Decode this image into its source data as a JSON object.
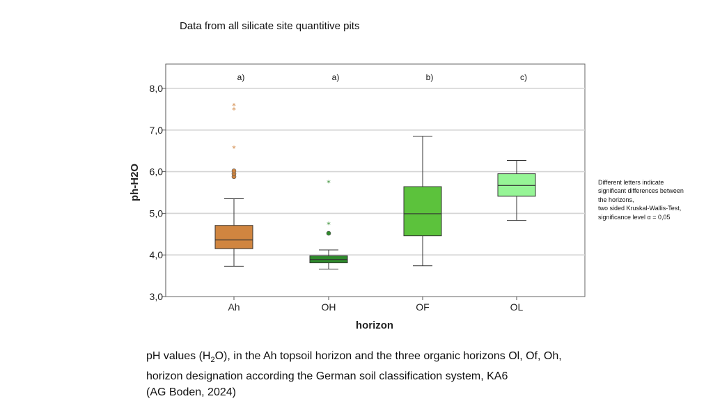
{
  "page": {
    "title": "Data from all silicate site quantitive pits",
    "note_lines": [
      "Different letters indicate",
      "significant differences between",
      "the horizons,",
      "two sided Kruskal-Wallis-Test,",
      "significance level α = 0,05"
    ],
    "caption": {
      "line1_pre": "pH values (H",
      "line1_sub": "2",
      "line1_post": "O), in the Ah topsoil horizon and the three organic horizons Ol, Of, Oh,",
      "line2": "horizon designation according the German soil classification system, KA6",
      "line3": "(AG Boden, 2024)"
    }
  },
  "chart_data": {
    "type": "box",
    "xlabel": "horizon",
    "ylabel": "ph-H2O",
    "ylim": [
      3.0,
      8.5
    ],
    "yticks": [
      3.0,
      4.0,
      5.0,
      6.0,
      7.0,
      8.0
    ],
    "ytick_labels": [
      "3,0",
      "4,0",
      "5,0",
      "6,0",
      "7,0",
      "8,0"
    ],
    "grid": true,
    "categories": [
      "Ah",
      "OH",
      "OF",
      "OL"
    ],
    "letters": [
      "a)",
      "a)",
      "b)",
      "c)"
    ],
    "colors": [
      "#d08540",
      "#2f8a2c",
      "#5cc23c",
      "#96f596"
    ],
    "outlier_colors": [
      "#d08540",
      "#2f8a2c",
      "#5cc23c",
      "#96f596"
    ],
    "boxes": [
      {
        "whisker_low": 3.73,
        "q1": 4.15,
        "median": 4.36,
        "q3": 4.71,
        "whisker_high": 5.35,
        "outliers": [
          5.88,
          5.95,
          6.02
        ],
        "extremes": [
          6.58,
          7.5,
          7.6
        ]
      },
      {
        "whisker_low": 3.66,
        "q1": 3.81,
        "median": 3.89,
        "q3": 3.98,
        "whisker_high": 4.12,
        "outliers": [
          4.52
        ],
        "extremes": [
          4.75,
          5.75
        ]
      },
      {
        "whisker_low": 3.74,
        "q1": 4.46,
        "median": 4.99,
        "q3": 5.64,
        "whisker_high": 6.85,
        "outliers": [],
        "extremes": []
      },
      {
        "whisker_low": 4.83,
        "q1": 5.41,
        "median": 5.67,
        "q3": 5.95,
        "whisker_high": 6.27,
        "outliers": [],
        "extremes": []
      }
    ]
  }
}
